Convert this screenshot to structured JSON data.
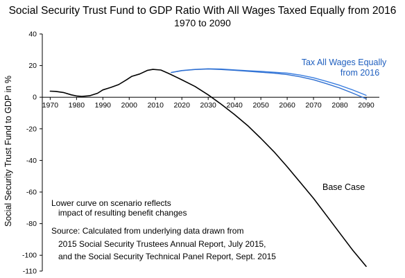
{
  "chart_data": {
    "type": "line",
    "title": "Social Security Trust Fund to GDP Ratio With All Wages Taxed Equally from 2016",
    "subtitle": "1970 to 2090",
    "ylabel": "Social Security Trust Fund to GDP in %",
    "xlabel": "",
    "xlim": [
      1967,
      2095
    ],
    "ylim": [
      -110,
      40
    ],
    "x_ticks": [
      1970,
      1980,
      1990,
      2000,
      2010,
      2020,
      2030,
      2040,
      2050,
      2060,
      2070,
      2080,
      2090
    ],
    "y_ticks": [
      40,
      20,
      0,
      -20,
      -40,
      -60,
      -80,
      -100,
      -110
    ],
    "grid": false,
    "series": [
      {
        "name": "Base Case",
        "color": "#000000",
        "x": [
          1970,
          1972,
          1975,
          1978,
          1980,
          1982,
          1985,
          1988,
          1990,
          1993,
          1996,
          1999,
          2001,
          2004,
          2007,
          2009,
          2012,
          2015,
          2020,
          2025,
          2030,
          2035,
          2040,
          2045,
          2050,
          2055,
          2060,
          2065,
          2070,
          2075,
          2080,
          2085,
          2090
        ],
        "y": [
          3.8,
          3.7,
          3.0,
          1.5,
          0.8,
          0.5,
          0.9,
          2.5,
          4.6,
          6.2,
          8.0,
          11.0,
          13.2,
          14.7,
          17.0,
          17.6,
          17.2,
          15.0,
          11.0,
          6.8,
          1.5,
          -4.5,
          -11.0,
          -18.0,
          -26.0,
          -34.5,
          -44.0,
          -54.0,
          -64.0,
          -75.0,
          -86.0,
          -97.0,
          -107.0
        ]
      },
      {
        "name": "Tax All Wages Equally from 2016",
        "color": "#3a7ee0",
        "x": [
          2016,
          2020,
          2025,
          2030,
          2035,
          2040,
          2045,
          2050,
          2055,
          2060,
          2065,
          2070,
          2075,
          2080,
          2085,
          2090
        ],
        "y": [
          15.6,
          16.9,
          17.6,
          18.0,
          17.8,
          17.3,
          16.8,
          16.3,
          15.8,
          15.2,
          14.0,
          12.3,
          10.0,
          7.5,
          4.5,
          1.2
        ]
      },
      {
        "name": "Lower curve on scenario reflects impact of resulting benefit changes",
        "color": "#2f6fd0",
        "x": [
          2016,
          2020,
          2025,
          2030,
          2035,
          2040,
          2045,
          2050,
          2055,
          2060,
          2065,
          2070,
          2075,
          2080,
          2085,
          2090
        ],
        "y": [
          15.6,
          16.8,
          17.5,
          17.8,
          17.5,
          17.0,
          16.4,
          15.8,
          15.2,
          14.3,
          12.9,
          11.0,
          8.5,
          5.8,
          2.5,
          -1.0
        ]
      }
    ],
    "annotations": {
      "tax_label_line1": "Tax All Wages Equally",
      "tax_label_line2": "from 2016",
      "base_label": "Base Case",
      "note_line1": "Lower curve on scenario reflects",
      "note_line2": "impact of resulting benefit changes",
      "source_line1": "Source:  Calculated from underlying data drawn from",
      "source_line2": "2015 Social Security Trustees Annual Report, July 2015,",
      "source_line3": "and the Social Security Technical Panel Report, Sept. 2015"
    }
  }
}
